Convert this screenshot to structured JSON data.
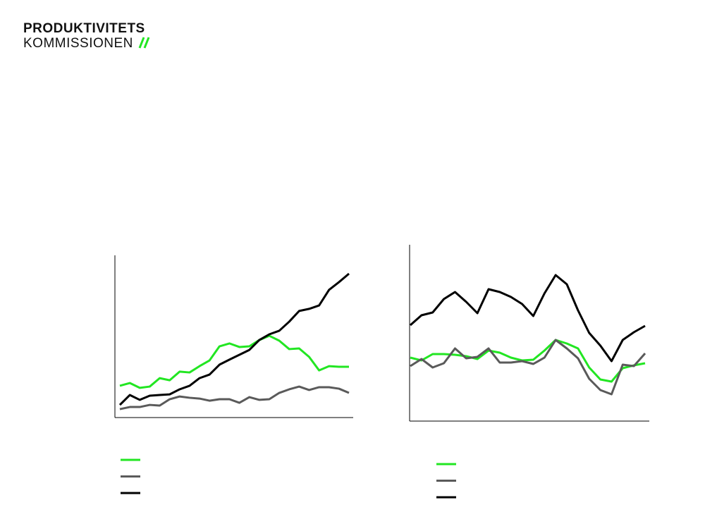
{
  "logo": {
    "line1": "PRODUKTIVITETS",
    "line2": "KOMMISSIONEN"
  },
  "chart_data": [
    {
      "type": "line",
      "ylim": [
        0,
        100
      ],
      "series": [
        {
          "color": "#22e622",
          "values": [
            19.6,
            21.3,
            18.3,
            19.1,
            24.3,
            23.0,
            28.3,
            27.8,
            31.7,
            35.2,
            43.9,
            45.7,
            43.5,
            43.9,
            47.8,
            50.4,
            47.4,
            42.2,
            42.6,
            37.4,
            29.1,
            31.7,
            31.3,
            31.3
          ]
        },
        {
          "color": "#5a5a5a",
          "values": [
            5.2,
            6.5,
            6.5,
            7.8,
            7.4,
            11.3,
            13.0,
            12.2,
            11.7,
            10.4,
            11.3,
            11.3,
            9.1,
            12.6,
            10.9,
            11.3,
            15.2,
            17.4,
            19.1,
            17.0,
            18.7,
            18.7,
            17.8,
            15.2
          ]
        },
        {
          "color": "#000000",
          "values": [
            7.8,
            13.9,
            10.9,
            13.5,
            13.9,
            14.3,
            17.4,
            19.6,
            24.3,
            26.5,
            32.6,
            35.7,
            38.7,
            41.7,
            47.8,
            51.3,
            53.5,
            59.1,
            65.7,
            67.0,
            69.1,
            78.7,
            83.5,
            88.7
          ]
        }
      ]
    },
    {
      "type": "line",
      "ylim": [
        0,
        100
      ],
      "series": [
        {
          "color": "#22e622",
          "values": [
            36,
            34.4,
            38,
            38,
            37.6,
            36.8,
            35.2,
            40,
            38.8,
            36,
            34.4,
            34.8,
            40,
            46,
            44,
            41.2,
            30.4,
            23.6,
            22.4,
            30,
            31.6,
            32.8
          ]
        },
        {
          "color": "#5a5a5a",
          "values": [
            31.2,
            35.2,
            30.4,
            32.8,
            41.2,
            35.6,
            36.4,
            41.2,
            33.2,
            33.2,
            34,
            32.4,
            36,
            46,
            41.2,
            35.6,
            24,
            17.6,
            15.2,
            32,
            31.2,
            38.4
          ]
        },
        {
          "color": "#000000",
          "values": [
            54.4,
            60,
            61.6,
            69.2,
            73.2,
            67.6,
            61.2,
            74.8,
            73.2,
            70.4,
            66.4,
            59.6,
            72.4,
            82.8,
            77.6,
            62.8,
            50,
            42.8,
            34,
            46,
            50.4,
            54
          ]
        }
      ]
    }
  ]
}
